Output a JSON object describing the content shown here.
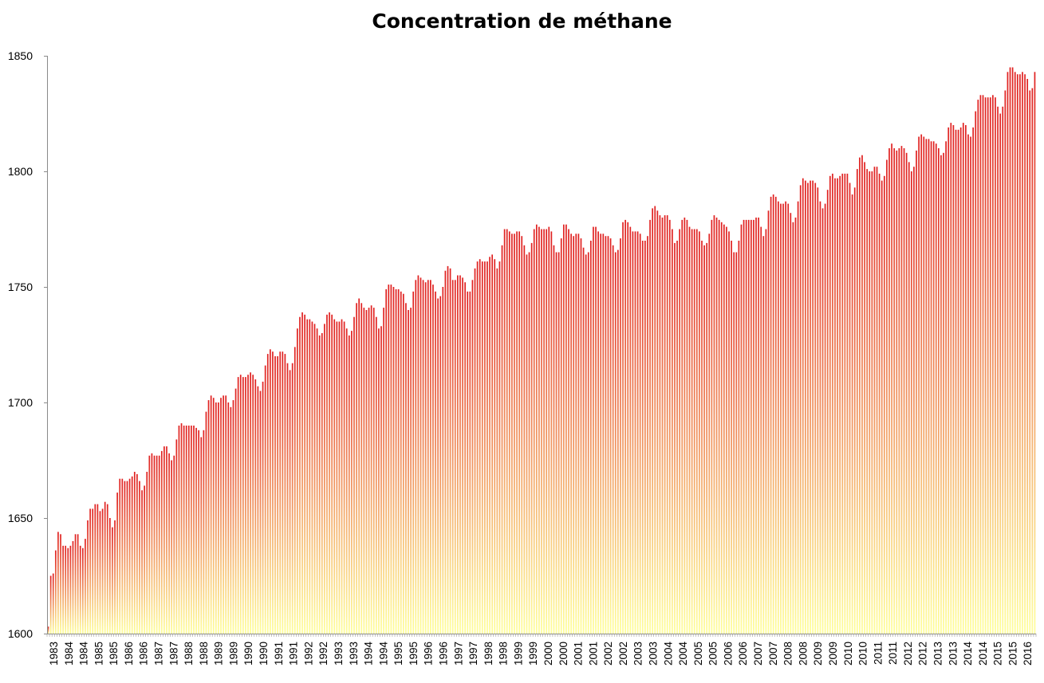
{
  "chart_data": {
    "type": "bar",
    "title": "Concentration de méthane",
    "xlabel": "",
    "ylabel": "",
    "ylim": [
      1600,
      1850
    ],
    "y_ticks": [
      1600,
      1650,
      1700,
      1750,
      1800,
      1850
    ],
    "x_tick_labels": [
      "1983",
      "1984",
      "1984",
      "1985",
      "1985",
      "1986",
      "1986",
      "1987",
      "1987",
      "1988",
      "1988",
      "1989",
      "1989",
      "1990",
      "1990",
      "1991",
      "1991",
      "1992",
      "1992",
      "1993",
      "1993",
      "1994",
      "1994",
      "1995",
      "1995",
      "1996",
      "1996",
      "1997",
      "1997",
      "1998",
      "1998",
      "1999",
      "1999",
      "2000",
      "2000",
      "2001",
      "2001",
      "2002",
      "2002",
      "2003",
      "2003",
      "2004",
      "2004",
      "2005",
      "2005",
      "2006",
      "2006",
      "2007",
      "2007",
      "2008",
      "2008",
      "2009",
      "2009",
      "2010",
      "2010",
      "2011",
      "2011",
      "2012",
      "2012",
      "2013",
      "2013",
      "2014",
      "2014",
      "2015",
      "2015",
      "2016"
    ],
    "grid": false,
    "legend": "none",
    "bar_gradient": {
      "top": "#e02020",
      "bottom": "#ffff99"
    },
    "series": [
      {
        "values": [
          1603,
          1625,
          1626,
          1636,
          1644,
          1643,
          1638,
          1638,
          1637,
          1638,
          1640,
          1643,
          1643,
          1638,
          1637,
          1641,
          1649,
          1654,
          1654,
          1656,
          1656,
          1653,
          1654,
          1657,
          1656,
          1650,
          1646,
          1649,
          1661,
          1667,
          1667,
          1666,
          1666,
          1667,
          1668,
          1670,
          1669,
          1666,
          1662,
          1664,
          1670,
          1677,
          1678,
          1677,
          1677,
          1677,
          1679,
          1681,
          1681,
          1678,
          1675,
          1677,
          1684,
          1690,
          1691,
          1690,
          1690,
          1690,
          1690,
          1690,
          1689,
          1688,
          1685,
          1688,
          1696,
          1701,
          1703,
          1702,
          1700,
          1700,
          1702,
          1703,
          1703,
          1700,
          1698,
          1701,
          1706,
          1711,
          1712,
          1711,
          1711,
          1712,
          1713,
          1712,
          1710,
          1707,
          1705,
          1709,
          1716,
          1721,
          1723,
          1722,
          1720,
          1720,
          1722,
          1722,
          1721,
          1717,
          1714,
          1717,
          1724,
          1732,
          1737,
          1739,
          1738,
          1736,
          1736,
          1735,
          1734,
          1732,
          1729,
          1730,
          1734,
          1738,
          1739,
          1738,
          1736,
          1735,
          1735,
          1736,
          1735,
          1732,
          1729,
          1731,
          1737,
          1743,
          1745,
          1743,
          1741,
          1740,
          1741,
          1742,
          1741,
          1737,
          1732,
          1733,
          1741,
          1749,
          1751,
          1751,
          1750,
          1749,
          1749,
          1748,
          1747,
          1743,
          1740,
          1741,
          1748,
          1753,
          1755,
          1754,
          1753,
          1752,
          1753,
          1753,
          1751,
          1748,
          1745,
          1746,
          1750,
          1757,
          1759,
          1758,
          1753,
          1753,
          1755,
          1755,
          1754,
          1752,
          1748,
          1748,
          1753,
          1758,
          1761,
          1762,
          1761,
          1761,
          1761,
          1763,
          1764,
          1762,
          1758,
          1761,
          1768,
          1775,
          1775,
          1774,
          1773,
          1773,
          1774,
          1774,
          1772,
          1768,
          1764,
          1765,
          1769,
          1775,
          1777,
          1776,
          1775,
          1775,
          1775,
          1776,
          1774,
          1768,
          1765,
          1765,
          1771,
          1777,
          1777,
          1775,
          1773,
          1772,
          1773,
          1773,
          1771,
          1767,
          1764,
          1765,
          1770,
          1776,
          1776,
          1774,
          1773,
          1773,
          1772,
          1772,
          1771,
          1768,
          1765,
          1766,
          1771,
          1778,
          1779,
          1778,
          1776,
          1774,
          1774,
          1774,
          1773,
          1770,
          1770,
          1772,
          1779,
          1784,
          1785,
          1783,
          1781,
          1780,
          1781,
          1781,
          1779,
          1775,
          1769,
          1770,
          1775,
          1779,
          1780,
          1779,
          1776,
          1775,
          1775,
          1775,
          1774,
          1770,
          1768,
          1769,
          1773,
          1779,
          1781,
          1780,
          1779,
          1778,
          1777,
          1776,
          1774,
          1770,
          1765,
          1765,
          1770,
          1777,
          1779,
          1779,
          1779,
          1779,
          1779,
          1780,
          1780,
          1776,
          1772,
          1775,
          1783,
          1789,
          1790,
          1789,
          1787,
          1786,
          1786,
          1787,
          1786,
          1782,
          1778,
          1780,
          1787,
          1794,
          1797,
          1796,
          1795,
          1796,
          1796,
          1795,
          1793,
          1787,
          1784,
          1786,
          1792,
          1798,
          1799,
          1797,
          1797,
          1798,
          1799,
          1799,
          1799,
          1795,
          1790,
          1793,
          1801,
          1806,
          1807,
          1804,
          1801,
          1800,
          1800,
          1802,
          1802,
          1799,
          1796,
          1798,
          1805,
          1810,
          1812,
          1810,
          1809,
          1810,
          1811,
          1810,
          1808,
          1804,
          1800,
          1802,
          1809,
          1815,
          1816,
          1815,
          1814,
          1814,
          1813,
          1813,
          1812,
          1810,
          1807,
          1808,
          1813,
          1819,
          1821,
          1820,
          1818,
          1818,
          1819,
          1821,
          1820,
          1816,
          1815,
          1819,
          1826,
          1831,
          1833,
          1833,
          1832,
          1832,
          1832,
          1833,
          1832,
          1828,
          1825,
          1828,
          1835,
          1843,
          1845,
          1845,
          1843,
          1842,
          1842,
          1843,
          1842,
          1840,
          1835,
          1836,
          1843
        ]
      }
    ]
  }
}
